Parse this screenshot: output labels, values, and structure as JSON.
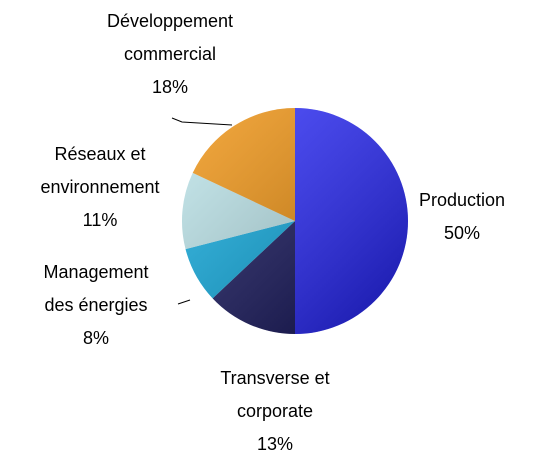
{
  "chart_data": {
    "type": "pie",
    "categories": [
      "Production",
      "Transverse et corporate",
      "Management des énergies",
      "Réseaux et environnement",
      "Développement commercial"
    ],
    "values": [
      50,
      13,
      8,
      11,
      18
    ],
    "value_labels": [
      "50%",
      "13%",
      "8%",
      "11%",
      "18%"
    ],
    "colors": [
      "#1f1fff",
      "#0a0a55",
      "#00a8e0",
      "#b8e4ea",
      "#f08c00"
    ]
  }
}
